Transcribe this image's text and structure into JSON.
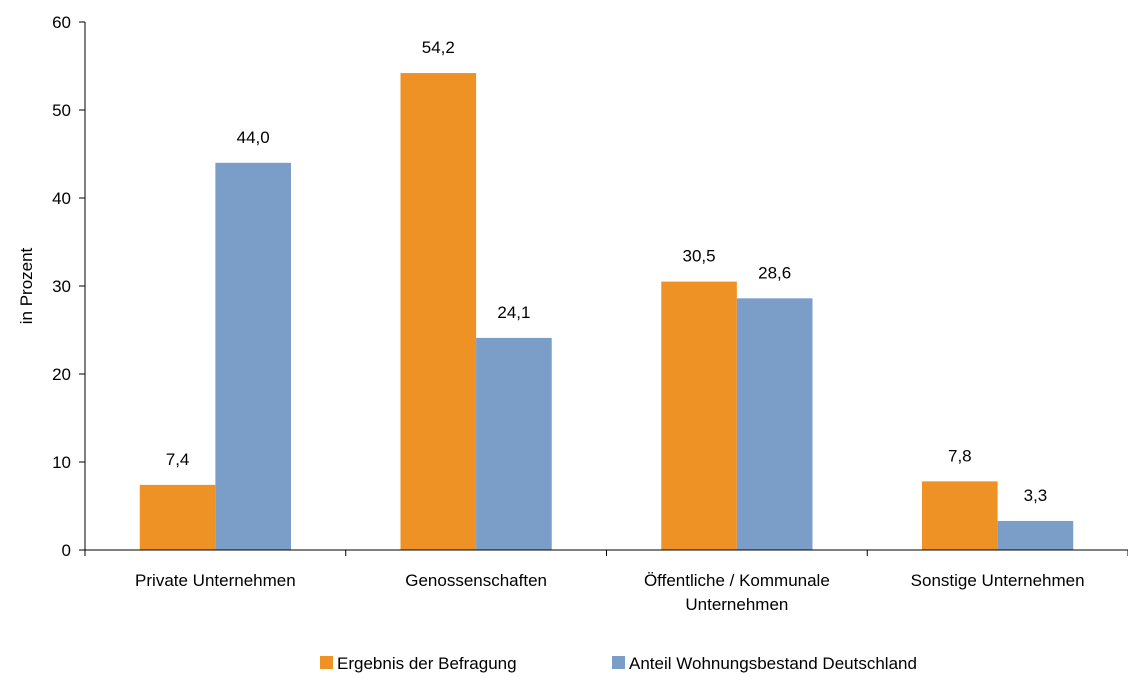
{
  "chart_data": {
    "type": "bar",
    "title": "",
    "xlabel": "",
    "ylabel": "in Prozent",
    "ylim": [
      0,
      60
    ],
    "yticks": [
      0,
      10,
      20,
      30,
      40,
      50,
      60
    ],
    "grid": false,
    "legend_position": "bottom",
    "categories": [
      [
        "Private Unternehmen"
      ],
      [
        "Genossenschaften"
      ],
      [
        "Öffentliche / Kommunale",
        "Unternehmen"
      ],
      [
        "Sonstige Unternehmen"
      ]
    ],
    "series": [
      {
        "name": "Ergebnis der Befragung",
        "color": "#ef9226",
        "values": [
          7.4,
          54.2,
          30.5,
          7.8
        ],
        "labels": [
          "7,4",
          "54,2",
          "30,5",
          "7,8"
        ]
      },
      {
        "name": "Anteil Wohnungsbestand Deutschland",
        "color": "#7b9ec9",
        "values": [
          44.0,
          24.1,
          28.6,
          3.3
        ],
        "labels": [
          "44,0",
          "24,1",
          "28,6",
          "3,3"
        ]
      }
    ]
  }
}
